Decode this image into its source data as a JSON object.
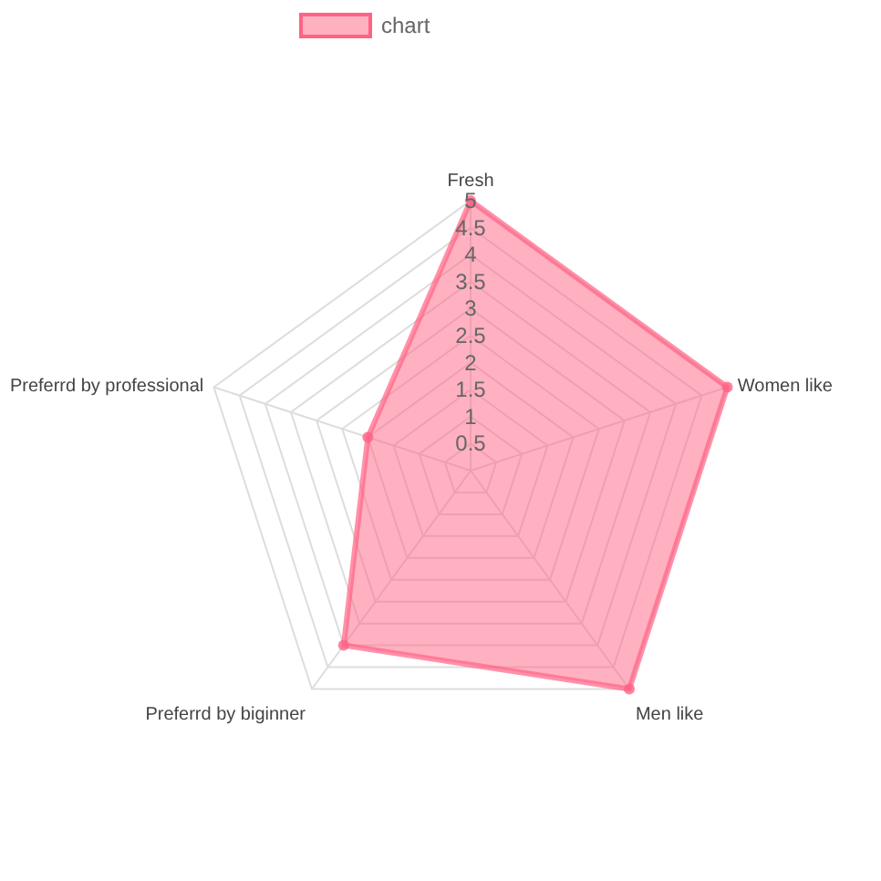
{
  "chart_data": {
    "type": "radar",
    "categories": [
      "Fresh",
      "Women like",
      "Men like",
      "Preferrd by biginner",
      "Preferrd by professional"
    ],
    "series": [
      {
        "name": "chart",
        "color": "#ff6384",
        "values": [
          5,
          5,
          5,
          4,
          2
        ]
      }
    ],
    "ylim": [
      0,
      5
    ],
    "yticks": [
      0.5,
      1,
      1.5,
      2,
      2.5,
      3,
      3.5,
      4,
      4.5,
      5
    ],
    "grid": true,
    "legend": "top",
    "marker": "circle"
  }
}
